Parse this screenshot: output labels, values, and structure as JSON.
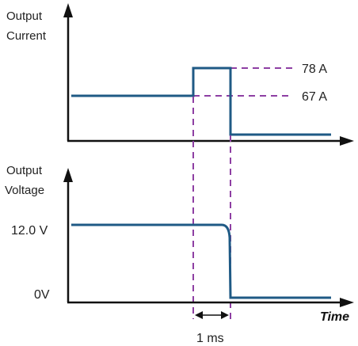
{
  "current_plot": {
    "axis_label_line1": "Output",
    "axis_label_line2": "Current",
    "level_high": "78 A",
    "level_low": "67 A"
  },
  "voltage_plot": {
    "axis_label_line1": "Output",
    "axis_label_line2": "Voltage",
    "level_high": "12.0 V",
    "level_low": "0V"
  },
  "time_axis_label": "Time",
  "interval_label": "1 ms",
  "colors": {
    "trace": "#1f5a85",
    "guide": "#8e3fa3",
    "axis": "#111111"
  }
}
